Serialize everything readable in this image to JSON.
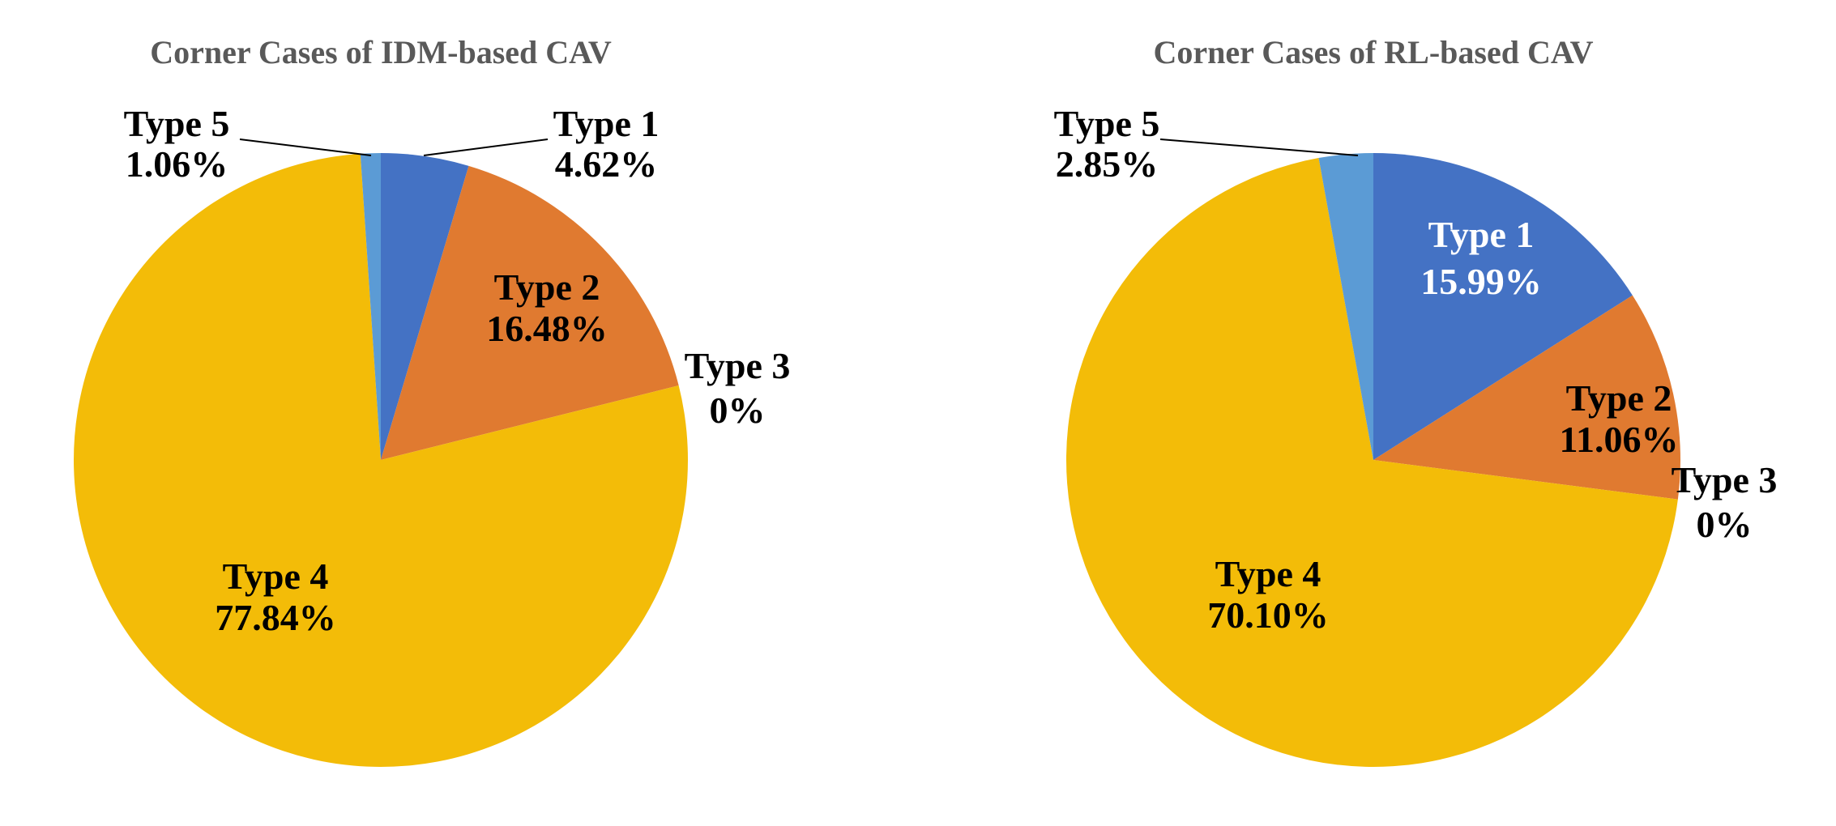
{
  "chart_data": [
    {
      "type": "pie",
      "title": "Corner Cases of IDM-based CAV",
      "categories": [
        "Type 1",
        "Type 2",
        "Type 3",
        "Type 4",
        "Type 5"
      ],
      "values": [
        4.62,
        16.48,
        0,
        77.84,
        1.06
      ],
      "labels": [
        "4.62%",
        "16.48%",
        "0%",
        "77.84%",
        "1.06%"
      ],
      "colors": [
        "#4472C4",
        "#E07A30",
        "#A5A5A5",
        "#F3BC08",
        "#5B9BD5"
      ],
      "start": "top",
      "direction": "clockwise"
    },
    {
      "type": "pie",
      "title": "Corner Cases of RL-based CAV",
      "categories": [
        "Type 1",
        "Type 2",
        "Type 3",
        "Type 4",
        "Type 5"
      ],
      "values": [
        15.99,
        11.06,
        0,
        70.1,
        2.85
      ],
      "labels": [
        "15.99%",
        "11.06%",
        "0%",
        "70.10%",
        "2.85%"
      ],
      "colors": [
        "#4472C4",
        "#E07A30",
        "#A5A5A5",
        "#F3BC08",
        "#5B9BD5"
      ],
      "start": "top",
      "direction": "clockwise"
    }
  ]
}
